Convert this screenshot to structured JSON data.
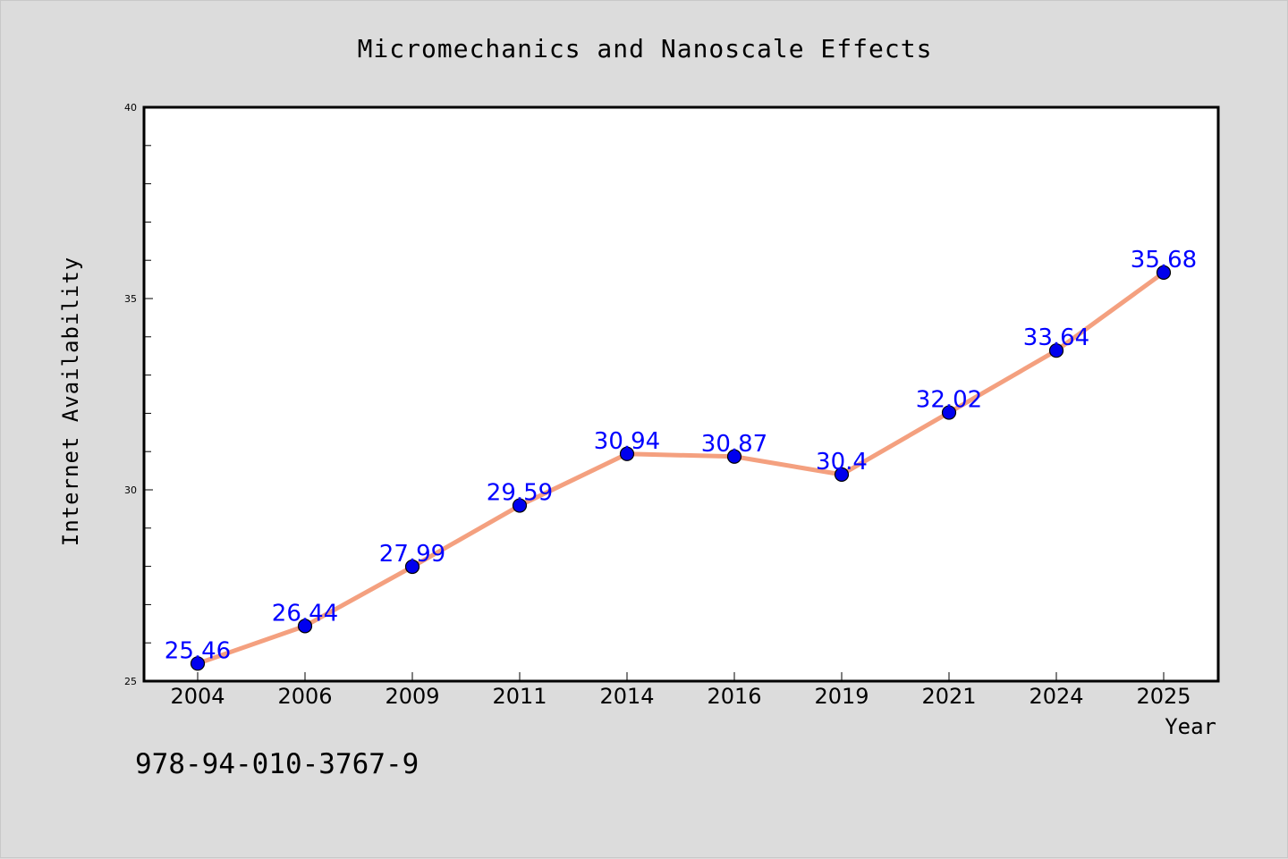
{
  "footer_text": "978-94-010-3767-9",
  "chart_data": {
    "type": "line",
    "title": "Micromechanics and Nanoscale Effects",
    "xlabel": "Year",
    "ylabel": "Internet Availability",
    "categories": [
      "2004",
      "2006",
      "2009",
      "2011",
      "2014",
      "2016",
      "2019",
      "2021",
      "2024",
      "2025"
    ],
    "series": [
      {
        "values": [
          25.46,
          26.44,
          27.99,
          29.59,
          30.94,
          30.87,
          30.4,
          32.02,
          33.64,
          35.68
        ],
        "data_labels": [
          "25.46",
          "26.44",
          "27.99",
          "29.59",
          "30.94",
          "30.87",
          "30.4",
          "32.02",
          "33.64",
          "35.68"
        ]
      }
    ],
    "ylim": [
      25,
      40
    ],
    "y_major_ticks": [
      25,
      30,
      35,
      40
    ],
    "y_minor_step": 1,
    "grid": false,
    "legend": "none",
    "colors": {
      "line": "#f4a07f",
      "marker": "#0000ee",
      "label": "#0000ff",
      "axis": "#000000"
    }
  }
}
